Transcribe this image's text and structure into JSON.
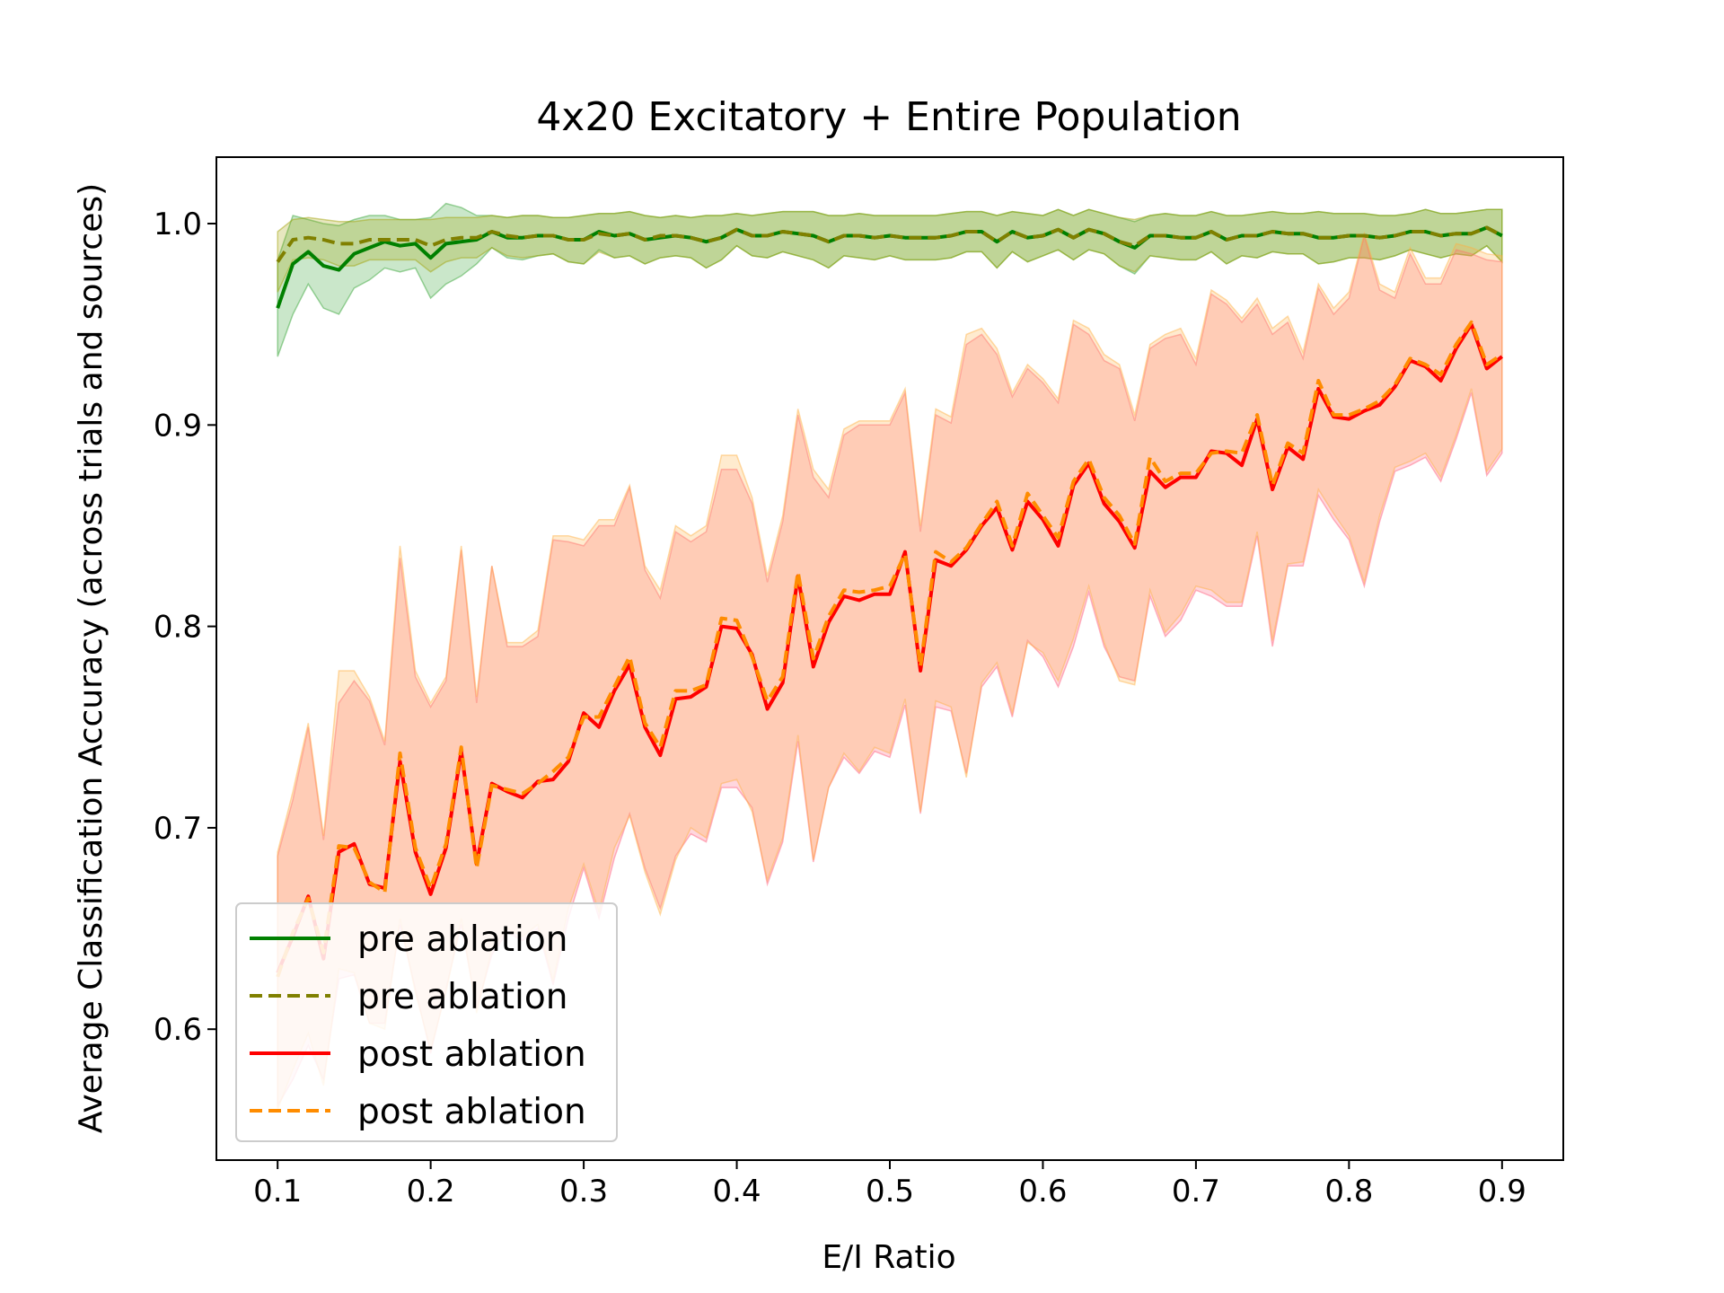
{
  "chart_data": {
    "type": "line",
    "title": "4x20 Excitatory + Entire Population",
    "xlabel": "E/I Ratio",
    "ylabel": "Average Classification Accuracy (across trials and sources)",
    "xlim": [
      0.06,
      0.94
    ],
    "ylim": [
      0.535,
      1.033
    ],
    "xticks": [
      "0.1",
      "0.2",
      "0.3",
      "0.4",
      "0.5",
      "0.6",
      "0.7",
      "0.8",
      "0.9"
    ],
    "yticks": [
      "0.6",
      "0.7",
      "0.8",
      "0.9",
      "1.0"
    ],
    "grid": false,
    "legend_position": "lower-left",
    "x": [
      0.1,
      0.11,
      0.12,
      0.13,
      0.14,
      0.15,
      0.16,
      0.17,
      0.18,
      0.19,
      0.2,
      0.21,
      0.22,
      0.23,
      0.24,
      0.25,
      0.26,
      0.27,
      0.28,
      0.29,
      0.3,
      0.31,
      0.32,
      0.33,
      0.34,
      0.35,
      0.36,
      0.37,
      0.38,
      0.39,
      0.4,
      0.41,
      0.42,
      0.43,
      0.44,
      0.45,
      0.46,
      0.47,
      0.48,
      0.49,
      0.5,
      0.51,
      0.52,
      0.53,
      0.54,
      0.55,
      0.56,
      0.57,
      0.58,
      0.59,
      0.6,
      0.61,
      0.62,
      0.63,
      0.64,
      0.65,
      0.66,
      0.67,
      0.68,
      0.69,
      0.7,
      0.71,
      0.72,
      0.73,
      0.74,
      0.75,
      0.76,
      0.77,
      0.78,
      0.79,
      0.8,
      0.81,
      0.82,
      0.83,
      0.84,
      0.85,
      0.86,
      0.87,
      0.88,
      0.89,
      0.9
    ],
    "series": [
      {
        "name": "pre ablation",
        "style": "solid",
        "color": "#008000",
        "band_color": "#2ca02c",
        "values": [
          0.958,
          0.98,
          0.986,
          0.979,
          0.977,
          0.985,
          0.988,
          0.991,
          0.989,
          0.99,
          0.983,
          0.99,
          0.991,
          0.992,
          0.996,
          0.993,
          0.993,
          0.994,
          0.994,
          0.992,
          0.992,
          0.996,
          0.994,
          0.995,
          0.992,
          0.993,
          0.994,
          0.993,
          0.991,
          0.993,
          0.997,
          0.994,
          0.994,
          0.996,
          0.995,
          0.994,
          0.991,
          0.994,
          0.994,
          0.993,
          0.994,
          0.993,
          0.993,
          0.993,
          0.994,
          0.996,
          0.996,
          0.991,
          0.996,
          0.993,
          0.994,
          0.997,
          0.993,
          0.997,
          0.995,
          0.991,
          0.988,
          0.994,
          0.994,
          0.993,
          0.993,
          0.996,
          0.992,
          0.994,
          0.994,
          0.996,
          0.995,
          0.995,
          0.993,
          0.993,
          0.994,
          0.994,
          0.993,
          0.994,
          0.996,
          0.996,
          0.994,
          0.995,
          0.995,
          0.998,
          0.994
        ],
        "lower": [
          0.934,
          0.955,
          0.97,
          0.958,
          0.955,
          0.968,
          0.972,
          0.978,
          0.976,
          0.978,
          0.963,
          0.97,
          0.974,
          0.98,
          0.988,
          0.983,
          0.982,
          0.984,
          0.985,
          0.981,
          0.98,
          0.987,
          0.983,
          0.984,
          0.98,
          0.983,
          0.984,
          0.983,
          0.978,
          0.982,
          0.989,
          0.984,
          0.983,
          0.986,
          0.984,
          0.982,
          0.978,
          0.984,
          0.983,
          0.982,
          0.984,
          0.982,
          0.982,
          0.982,
          0.983,
          0.986,
          0.986,
          0.978,
          0.986,
          0.981,
          0.984,
          0.987,
          0.982,
          0.987,
          0.985,
          0.979,
          0.975,
          0.984,
          0.983,
          0.982,
          0.982,
          0.986,
          0.98,
          0.984,
          0.983,
          0.986,
          0.985,
          0.985,
          0.98,
          0.981,
          0.983,
          0.983,
          0.982,
          0.984,
          0.987,
          0.985,
          0.983,
          0.985,
          0.984,
          0.989,
          0.981
        ],
        "upper": [
          0.982,
          1.004,
          1.002,
          1.0,
          0.999,
          1.002,
          1.004,
          1.004,
          1.002,
          1.002,
          1.003,
          1.01,
          1.008,
          1.004,
          1.004,
          1.003,
          1.004,
          1.004,
          1.003,
          1.003,
          1.004,
          1.005,
          1.005,
          1.006,
          1.004,
          1.003,
          1.004,
          1.003,
          1.004,
          1.004,
          1.005,
          1.004,
          1.005,
          1.006,
          1.006,
          1.006,
          1.004,
          1.004,
          1.005,
          1.004,
          1.004,
          1.004,
          1.004,
          1.004,
          1.005,
          1.006,
          1.006,
          1.004,
          1.006,
          1.005,
          1.004,
          1.007,
          1.004,
          1.007,
          1.005,
          1.003,
          1.001,
          1.004,
          1.005,
          1.004,
          1.004,
          1.006,
          1.004,
          1.004,
          1.005,
          1.006,
          1.005,
          1.005,
          1.006,
          1.005,
          1.005,
          1.005,
          1.004,
          1.004,
          1.005,
          1.007,
          1.005,
          1.005,
          1.006,
          1.007,
          1.007
        ]
      },
      {
        "name": "pre ablation",
        "style": "dashed",
        "color": "#808000",
        "band_color": "#a0a000",
        "values": [
          0.981,
          0.992,
          0.993,
          0.992,
          0.99,
          0.99,
          0.992,
          0.992,
          0.992,
          0.992,
          0.989,
          0.992,
          0.993,
          0.993,
          0.996,
          0.994,
          0.993,
          0.994,
          0.994,
          0.992,
          0.992,
          0.995,
          0.994,
          0.995,
          0.992,
          0.994,
          0.994,
          0.993,
          0.991,
          0.993,
          0.997,
          0.994,
          0.994,
          0.996,
          0.995,
          0.994,
          0.991,
          0.994,
          0.994,
          0.993,
          0.994,
          0.993,
          0.993,
          0.993,
          0.994,
          0.996,
          0.996,
          0.991,
          0.996,
          0.993,
          0.994,
          0.997,
          0.993,
          0.997,
          0.995,
          0.991,
          0.989,
          0.994,
          0.994,
          0.993,
          0.993,
          0.996,
          0.992,
          0.994,
          0.994,
          0.996,
          0.995,
          0.995,
          0.993,
          0.993,
          0.994,
          0.994,
          0.993,
          0.994,
          0.996,
          0.996,
          0.994,
          0.995,
          0.995,
          0.998,
          0.994
        ],
        "lower": [
          0.966,
          0.982,
          0.983,
          0.982,
          0.979,
          0.979,
          0.982,
          0.982,
          0.982,
          0.982,
          0.976,
          0.981,
          0.983,
          0.983,
          0.988,
          0.984,
          0.983,
          0.984,
          0.985,
          0.981,
          0.98,
          0.986,
          0.983,
          0.984,
          0.98,
          0.983,
          0.984,
          0.983,
          0.978,
          0.982,
          0.989,
          0.984,
          0.983,
          0.986,
          0.984,
          0.982,
          0.978,
          0.984,
          0.983,
          0.982,
          0.984,
          0.982,
          0.982,
          0.982,
          0.983,
          0.986,
          0.986,
          0.978,
          0.986,
          0.981,
          0.984,
          0.987,
          0.982,
          0.987,
          0.985,
          0.979,
          0.976,
          0.984,
          0.983,
          0.982,
          0.982,
          0.986,
          0.98,
          0.984,
          0.983,
          0.986,
          0.985,
          0.985,
          0.98,
          0.981,
          0.983,
          0.983,
          0.982,
          0.984,
          0.987,
          0.985,
          0.983,
          0.985,
          0.984,
          0.989,
          0.981
        ],
        "upper": [
          0.996,
          1.002,
          1.003,
          1.002,
          1.001,
          1.001,
          1.002,
          1.002,
          1.002,
          1.002,
          1.002,
          1.003,
          1.003,
          1.003,
          1.004,
          1.003,
          1.004,
          1.004,
          1.003,
          1.003,
          1.004,
          1.005,
          1.005,
          1.006,
          1.004,
          1.003,
          1.004,
          1.003,
          1.004,
          1.004,
          1.005,
          1.004,
          1.005,
          1.006,
          1.006,
          1.006,
          1.004,
          1.004,
          1.005,
          1.004,
          1.004,
          1.004,
          1.004,
          1.004,
          1.005,
          1.006,
          1.006,
          1.004,
          1.006,
          1.005,
          1.004,
          1.007,
          1.004,
          1.007,
          1.005,
          1.003,
          1.002,
          1.004,
          1.005,
          1.004,
          1.004,
          1.006,
          1.004,
          1.004,
          1.005,
          1.006,
          1.005,
          1.005,
          1.006,
          1.005,
          1.005,
          1.005,
          1.004,
          1.004,
          1.005,
          1.007,
          1.005,
          1.005,
          1.006,
          1.007,
          1.007
        ]
      },
      {
        "name": "post ablation",
        "style": "solid",
        "color": "#ff0000",
        "band_color": "#ff5a7a",
        "values": [
          0.628,
          0.646,
          0.666,
          0.635,
          0.688,
          0.692,
          0.672,
          0.67,
          0.733,
          0.688,
          0.667,
          0.69,
          0.738,
          0.682,
          0.722,
          0.718,
          0.715,
          0.723,
          0.724,
          0.733,
          0.757,
          0.75,
          0.768,
          0.781,
          0.75,
          0.736,
          0.764,
          0.765,
          0.77,
          0.8,
          0.799,
          0.786,
          0.759,
          0.772,
          0.825,
          0.78,
          0.802,
          0.815,
          0.813,
          0.816,
          0.816,
          0.837,
          0.778,
          0.833,
          0.83,
          0.838,
          0.85,
          0.859,
          0.838,
          0.862,
          0.853,
          0.84,
          0.87,
          0.881,
          0.861,
          0.852,
          0.839,
          0.877,
          0.869,
          0.874,
          0.874,
          0.887,
          0.886,
          0.88,
          0.903,
          0.868,
          0.889,
          0.883,
          0.918,
          0.904,
          0.903,
          0.907,
          0.91,
          0.919,
          0.932,
          0.929,
          0.922,
          0.938,
          0.95,
          0.928,
          0.934
        ],
        "lower": [
          0.562,
          0.575,
          0.592,
          0.575,
          0.625,
          0.627,
          0.603,
          0.603,
          0.652,
          0.62,
          0.588,
          0.62,
          0.652,
          0.61,
          0.637,
          0.648,
          0.644,
          0.65,
          0.622,
          0.655,
          0.68,
          0.655,
          0.685,
          0.707,
          0.68,
          0.66,
          0.686,
          0.697,
          0.693,
          0.72,
          0.72,
          0.71,
          0.672,
          0.693,
          0.743,
          0.683,
          0.72,
          0.735,
          0.727,
          0.738,
          0.735,
          0.761,
          0.707,
          0.76,
          0.758,
          0.727,
          0.77,
          0.78,
          0.755,
          0.793,
          0.785,
          0.77,
          0.79,
          0.817,
          0.79,
          0.775,
          0.773,
          0.815,
          0.795,
          0.803,
          0.818,
          0.815,
          0.81,
          0.81,
          0.845,
          0.79,
          0.83,
          0.83,
          0.865,
          0.853,
          0.843,
          0.82,
          0.852,
          0.877,
          0.88,
          0.884,
          0.872,
          0.893,
          0.916,
          0.875,
          0.886
        ],
        "upper": [
          0.686,
          0.714,
          0.75,
          0.694,
          0.762,
          0.773,
          0.763,
          0.741,
          0.834,
          0.775,
          0.76,
          0.773,
          0.838,
          0.762,
          0.83,
          0.79,
          0.79,
          0.795,
          0.843,
          0.842,
          0.84,
          0.85,
          0.85,
          0.869,
          0.828,
          0.814,
          0.847,
          0.842,
          0.847,
          0.878,
          0.878,
          0.861,
          0.822,
          0.852,
          0.905,
          0.874,
          0.864,
          0.895,
          0.9,
          0.9,
          0.9,
          0.916,
          0.847,
          0.905,
          0.901,
          0.94,
          0.945,
          0.935,
          0.914,
          0.928,
          0.921,
          0.911,
          0.95,
          0.945,
          0.932,
          0.928,
          0.902,
          0.938,
          0.943,
          0.945,
          0.93,
          0.965,
          0.96,
          0.951,
          0.96,
          0.945,
          0.951,
          0.933,
          0.968,
          0.955,
          0.963,
          0.994,
          0.967,
          0.963,
          0.985,
          0.97,
          0.97,
          0.987,
          0.985,
          0.982,
          0.981
        ]
      },
      {
        "name": "post ablation",
        "style": "dashed",
        "color": "#ff8c00",
        "band_color": "#ffb040",
        "values": [
          0.626,
          0.648,
          0.665,
          0.638,
          0.691,
          0.69,
          0.673,
          0.668,
          0.737,
          0.69,
          0.67,
          0.692,
          0.74,
          0.68,
          0.721,
          0.719,
          0.717,
          0.722,
          0.728,
          0.735,
          0.755,
          0.755,
          0.77,
          0.785,
          0.752,
          0.74,
          0.768,
          0.768,
          0.771,
          0.804,
          0.803,
          0.785,
          0.763,
          0.775,
          0.827,
          0.784,
          0.805,
          0.818,
          0.817,
          0.818,
          0.82,
          0.836,
          0.78,
          0.837,
          0.832,
          0.839,
          0.851,
          0.862,
          0.84,
          0.866,
          0.855,
          0.844,
          0.872,
          0.883,
          0.864,
          0.855,
          0.841,
          0.884,
          0.872,
          0.876,
          0.876,
          0.886,
          0.887,
          0.886,
          0.905,
          0.87,
          0.891,
          0.886,
          0.922,
          0.905,
          0.905,
          0.908,
          0.912,
          0.92,
          0.933,
          0.93,
          0.925,
          0.94,
          0.951,
          0.93,
          0.935
        ],
        "lower": [
          0.56,
          0.58,
          0.598,
          0.572,
          0.63,
          0.628,
          0.603,
          0.6,
          0.655,
          0.618,
          0.59,
          0.618,
          0.655,
          0.608,
          0.64,
          0.65,
          0.646,
          0.652,
          0.624,
          0.66,
          0.682,
          0.658,
          0.69,
          0.706,
          0.678,
          0.657,
          0.684,
          0.7,
          0.695,
          0.722,
          0.724,
          0.708,
          0.674,
          0.695,
          0.746,
          0.684,
          0.72,
          0.737,
          0.728,
          0.74,
          0.737,
          0.764,
          0.708,
          0.763,
          0.76,
          0.725,
          0.772,
          0.782,
          0.757,
          0.792,
          0.787,
          0.773,
          0.794,
          0.82,
          0.792,
          0.773,
          0.771,
          0.818,
          0.797,
          0.806,
          0.82,
          0.818,
          0.812,
          0.812,
          0.847,
          0.793,
          0.831,
          0.832,
          0.868,
          0.856,
          0.845,
          0.822,
          0.855,
          0.879,
          0.882,
          0.886,
          0.874,
          0.895,
          0.918,
          0.877,
          0.888
        ],
        "upper": [
          0.688,
          0.718,
          0.752,
          0.696,
          0.778,
          0.778,
          0.765,
          0.743,
          0.84,
          0.778,
          0.762,
          0.775,
          0.84,
          0.765,
          0.83,
          0.792,
          0.792,
          0.798,
          0.845,
          0.845,
          0.843,
          0.853,
          0.853,
          0.87,
          0.83,
          0.818,
          0.85,
          0.845,
          0.85,
          0.885,
          0.885,
          0.864,
          0.825,
          0.855,
          0.908,
          0.878,
          0.868,
          0.898,
          0.902,
          0.902,
          0.902,
          0.918,
          0.85,
          0.908,
          0.904,
          0.945,
          0.948,
          0.938,
          0.916,
          0.93,
          0.923,
          0.913,
          0.952,
          0.948,
          0.935,
          0.93,
          0.905,
          0.94,
          0.945,
          0.948,
          0.933,
          0.967,
          0.962,
          0.953,
          0.963,
          0.948,
          0.954,
          0.936,
          0.97,
          0.958,
          0.966,
          0.995,
          0.97,
          0.966,
          0.988,
          0.973,
          0.973,
          0.99,
          0.988,
          0.985,
          0.984
        ]
      }
    ],
    "legend": [
      {
        "label": "pre ablation",
        "color": "#008000",
        "style": "solid"
      },
      {
        "label": "pre ablation",
        "color": "#808000",
        "style": "dashed"
      },
      {
        "label": "post ablation",
        "color": "#ff0000",
        "style": "solid"
      },
      {
        "label": "post ablation",
        "color": "#ff8c00",
        "style": "dashed"
      }
    ]
  }
}
